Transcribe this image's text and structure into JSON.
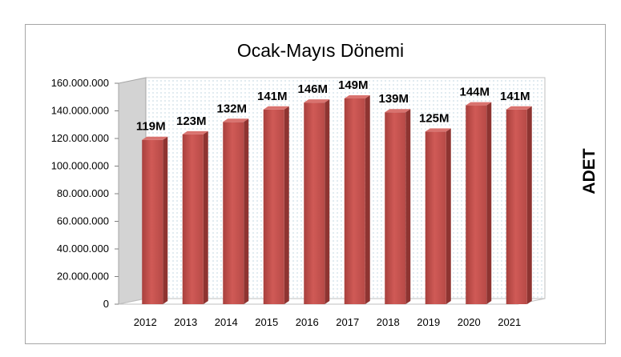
{
  "chart_data": {
    "type": "bar",
    "title": "Ocak-Mayıs Dönemi",
    "ylabel": "ADET",
    "xlabel": "",
    "categories": [
      "2012",
      "2013",
      "2014",
      "2015",
      "2016",
      "2017",
      "2018",
      "2019",
      "2020",
      "2021"
    ],
    "values": [
      119000000,
      123000000,
      132000000,
      141000000,
      146000000,
      149000000,
      139000000,
      125000000,
      144000000,
      141000000
    ],
    "data_labels": [
      "119M",
      "123M",
      "132M",
      "141M",
      "146M",
      "149M",
      "139M",
      "125M",
      "144M",
      "141M"
    ],
    "yticks": [
      "0",
      "20.000.000",
      "40.000.000",
      "60.000.000",
      "80.000.000",
      "100.000.000",
      "120.000.000",
      "140.000.000",
      "160.000.000"
    ],
    "ylim": [
      0,
      160000000
    ],
    "legend": "none",
    "style": "3d-columns",
    "colors": {
      "bar": "#c0504d",
      "bar_side": "#8e3431",
      "bar_top": "#d9736f",
      "wall_dots": "#9bbcd0"
    }
  }
}
